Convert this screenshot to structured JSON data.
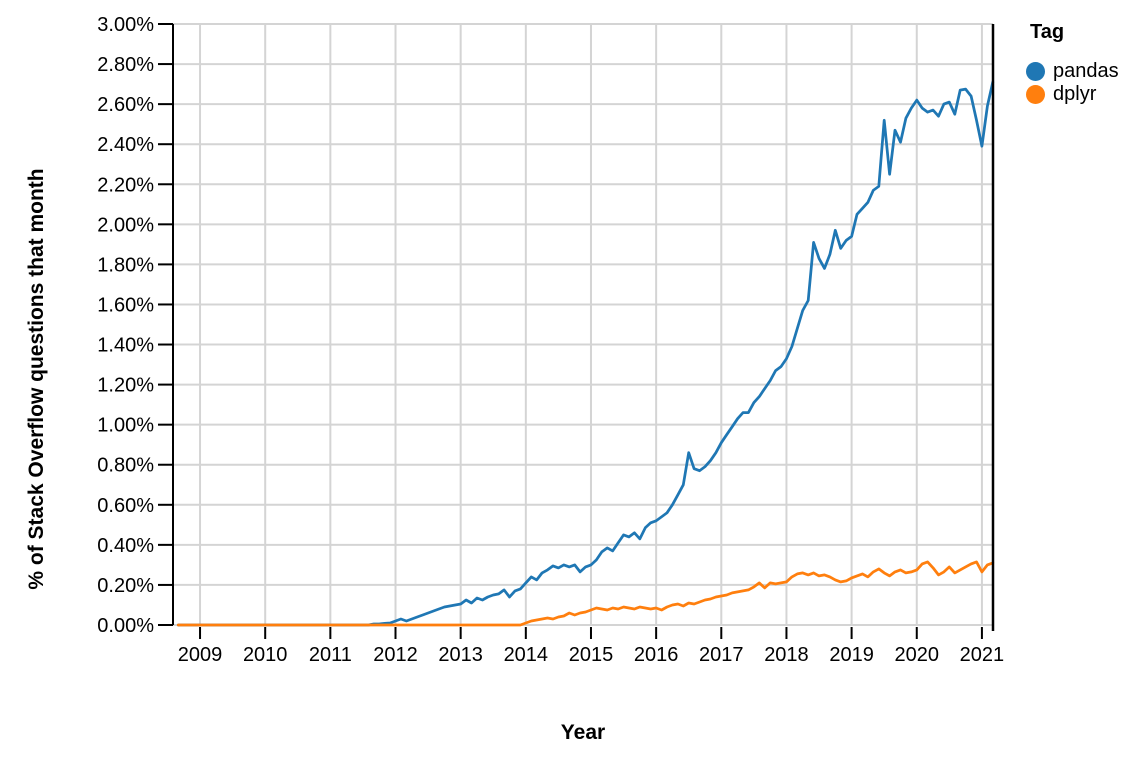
{
  "chart_data": {
    "type": "line",
    "title": "",
    "xlabel": "Year",
    "ylabel": "% of Stack Overflow questions that month",
    "legend": {
      "title": "Tag",
      "position": "right",
      "entries": [
        "pandas",
        "dplyr"
      ]
    },
    "x_tick_labels": [
      "2009",
      "2010",
      "2011",
      "2012",
      "2013",
      "2014",
      "2015",
      "2016",
      "2017",
      "2018",
      "2019",
      "2020",
      "2021"
    ],
    "y_tick_labels": [
      "0.00%",
      "0.20%",
      "0.40%",
      "0.60%",
      "0.80%",
      "1.00%",
      "1.20%",
      "1.40%",
      "1.60%",
      "1.80%",
      "2.00%",
      "2.20%",
      "2.40%",
      "2.60%",
      "2.80%",
      "3.00%"
    ],
    "ylim": [
      0,
      3.0
    ],
    "y_step": 0.2,
    "xlim_years": [
      2008.585,
      2021.17
    ],
    "grid": true,
    "x_unit": "month",
    "start_month": "2008-09",
    "end_month": "2021-03",
    "axis_colors": {
      "grid": "#d4d4d4",
      "domain": "#000000",
      "text": "#000000"
    },
    "series": [
      {
        "name": "pandas",
        "color": "#1f77b4",
        "values": [
          0,
          0,
          0,
          0,
          0,
          0,
          0,
          0,
          0,
          0,
          0,
          0,
          0,
          0,
          0,
          0,
          0,
          0,
          0,
          0,
          0,
          0,
          0,
          0,
          0,
          0,
          0,
          0,
          0,
          0,
          0,
          0,
          0,
          0,
          0,
          0,
          0.005,
          0.005,
          0.008,
          0.01,
          0.02,
          0.03,
          0.02,
          0.03,
          0.04,
          0.05,
          0.06,
          0.07,
          0.08,
          0.09,
          0.095,
          0.1,
          0.105,
          0.125,
          0.11,
          0.135,
          0.125,
          0.14,
          0.15,
          0.155,
          0.175,
          0.14,
          0.17,
          0.18,
          0.21,
          0.24,
          0.225,
          0.26,
          0.275,
          0.295,
          0.285,
          0.3,
          0.29,
          0.3,
          0.265,
          0.29,
          0.3,
          0.325,
          0.365,
          0.385,
          0.37,
          0.41,
          0.45,
          0.44,
          0.46,
          0.43,
          0.485,
          0.51,
          0.52,
          0.54,
          0.56,
          0.6,
          0.65,
          0.7,
          0.86,
          0.78,
          0.77,
          0.79,
          0.82,
          0.86,
          0.91,
          0.95,
          0.99,
          1.03,
          1.06,
          1.06,
          1.11,
          1.14,
          1.18,
          1.22,
          1.27,
          1.29,
          1.33,
          1.39,
          1.48,
          1.57,
          1.62,
          1.91,
          1.83,
          1.78,
          1.85,
          1.97,
          1.88,
          1.92,
          1.94,
          2.05,
          2.08,
          2.11,
          2.17,
          2.19,
          2.52,
          2.25,
          2.47,
          2.41,
          2.53,
          2.58,
          2.62,
          2.58,
          2.56,
          2.57,
          2.54,
          2.6,
          2.61,
          2.55,
          2.67,
          2.675,
          2.64,
          2.52,
          2.39,
          2.59,
          2.71
        ]
      },
      {
        "name": "dplyr",
        "color": "#ff7f0e",
        "values": [
          0,
          0,
          0,
          0,
          0,
          0,
          0,
          0,
          0,
          0,
          0,
          0,
          0,
          0,
          0,
          0,
          0,
          0,
          0,
          0,
          0,
          0,
          0,
          0,
          0,
          0,
          0,
          0,
          0,
          0,
          0,
          0,
          0,
          0,
          0,
          0,
          0,
          0,
          0,
          0,
          0,
          0,
          0,
          0,
          0,
          0,
          0,
          0,
          0,
          0,
          0,
          0,
          0,
          0,
          0,
          0,
          0,
          0,
          0,
          0,
          0,
          0,
          0,
          0,
          0.01,
          0.02,
          0.025,
          0.03,
          0.035,
          0.03,
          0.04,
          0.045,
          0.06,
          0.05,
          0.06,
          0.065,
          0.075,
          0.085,
          0.08,
          0.075,
          0.085,
          0.08,
          0.09,
          0.085,
          0.08,
          0.09,
          0.085,
          0.08,
          0.085,
          0.075,
          0.09,
          0.1,
          0.105,
          0.095,
          0.11,
          0.105,
          0.115,
          0.125,
          0.13,
          0.14,
          0.145,
          0.15,
          0.16,
          0.165,
          0.17,
          0.175,
          0.19,
          0.21,
          0.185,
          0.21,
          0.205,
          0.21,
          0.215,
          0.24,
          0.255,
          0.26,
          0.25,
          0.26,
          0.245,
          0.25,
          0.24,
          0.225,
          0.215,
          0.22,
          0.235,
          0.245,
          0.255,
          0.24,
          0.265,
          0.28,
          0.26,
          0.245,
          0.265,
          0.275,
          0.26,
          0.265,
          0.275,
          0.305,
          0.315,
          0.285,
          0.25,
          0.265,
          0.29,
          0.26,
          0.275,
          0.29,
          0.305,
          0.315,
          0.265,
          0.3,
          0.31
        ]
      }
    ]
  }
}
